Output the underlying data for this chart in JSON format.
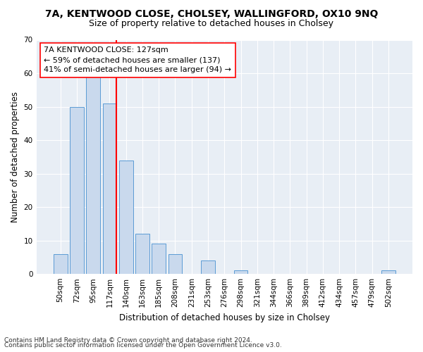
{
  "title1": "7A, KENTWOOD CLOSE, CHOLSEY, WALLINGFORD, OX10 9NQ",
  "title2": "Size of property relative to detached houses in Cholsey",
  "xlabel": "Distribution of detached houses by size in Cholsey",
  "ylabel": "Number of detached properties",
  "categories": [
    "50sqm",
    "72sqm",
    "95sqm",
    "117sqm",
    "140sqm",
    "163sqm",
    "185sqm",
    "208sqm",
    "231sqm",
    "253sqm",
    "276sqm",
    "298sqm",
    "321sqm",
    "344sqm",
    "366sqm",
    "389sqm",
    "412sqm",
    "434sqm",
    "457sqm",
    "479sqm",
    "502sqm"
  ],
  "values": [
    6,
    50,
    59,
    51,
    34,
    12,
    9,
    6,
    0,
    4,
    0,
    1,
    0,
    0,
    0,
    0,
    0,
    0,
    0,
    0,
    1
  ],
  "bar_color": "#c9d9ed",
  "bar_edge_color": "#5b9bd5",
  "vline_color": "red",
  "ylim": [
    0,
    70
  ],
  "yticks": [
    0,
    10,
    20,
    30,
    40,
    50,
    60,
    70
  ],
  "annotation_line1": "7A KENTWOOD CLOSE: 127sqm",
  "annotation_line2": "← 59% of detached houses are smaller (137)",
  "annotation_line3": "41% of semi-detached houses are larger (94) →",
  "annotation_box_color": "white",
  "annotation_box_edge_color": "red",
  "footnote1": "Contains HM Land Registry data © Crown copyright and database right 2024.",
  "footnote2": "Contains public sector information licensed under the Open Government Licence v3.0.",
  "background_color": "#e8eef5",
  "title1_fontsize": 10,
  "title2_fontsize": 9,
  "xlabel_fontsize": 8.5,
  "ylabel_fontsize": 8.5,
  "tick_fontsize": 7.5,
  "annotation_fontsize": 8,
  "footnote_fontsize": 6.5
}
